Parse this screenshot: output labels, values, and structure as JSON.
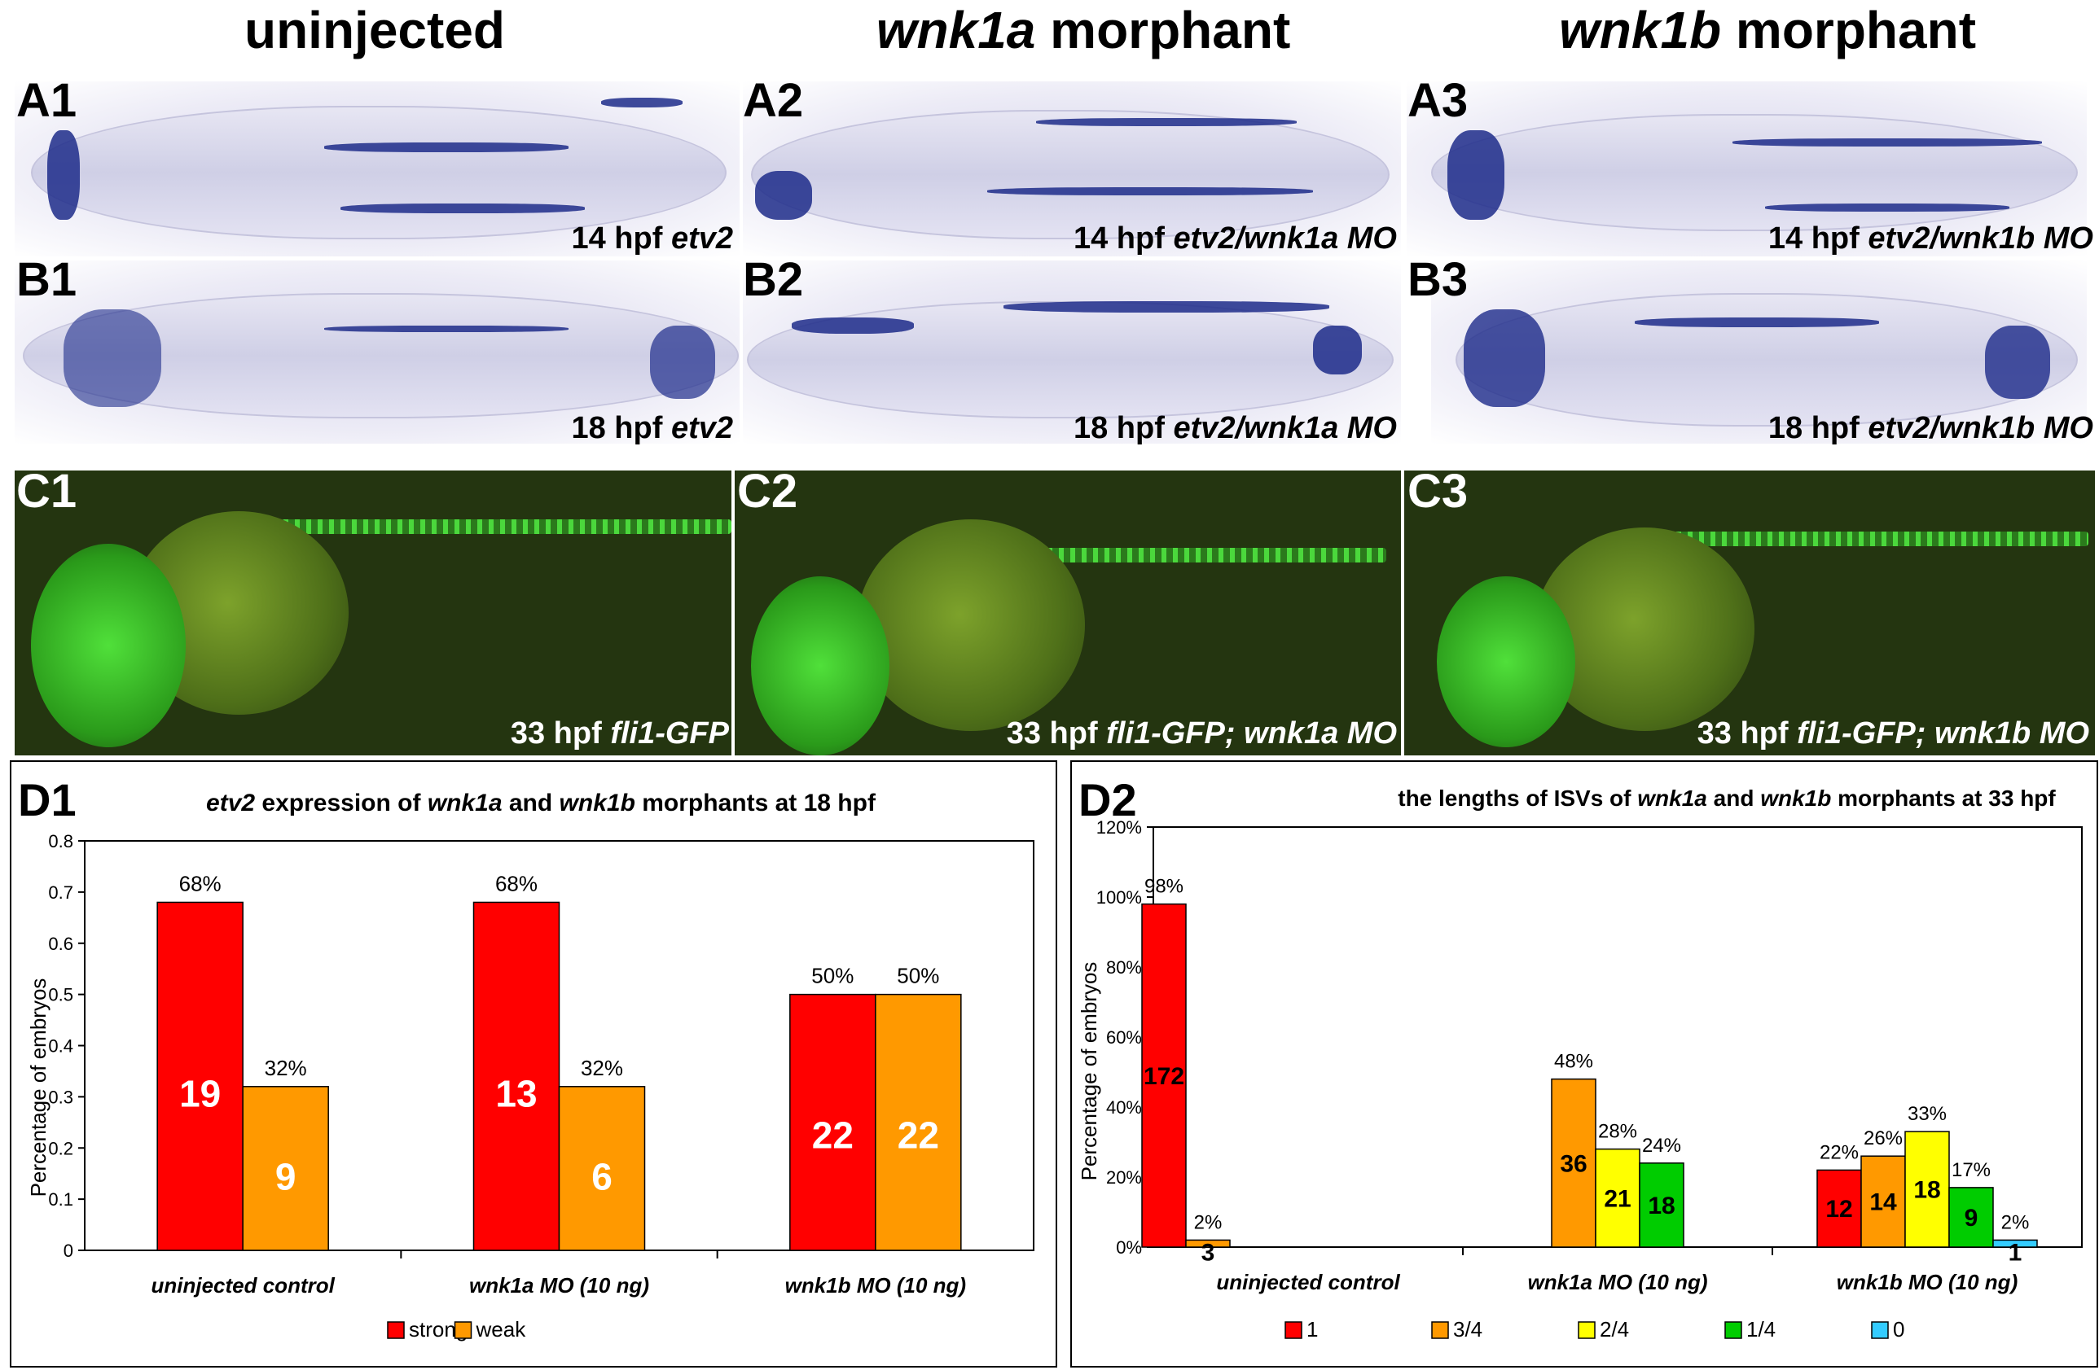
{
  "columns": {
    "uninjected": "uninjected",
    "wnk1a": {
      "gene": "wnk1a",
      "suffix": " morphant"
    },
    "wnk1b": {
      "gene": "wnk1b",
      "suffix": " morphant"
    }
  },
  "panels": {
    "A1": {
      "label": "A1",
      "stage": "14 hpf ",
      "marker": "etv2"
    },
    "A2": {
      "label": "A2",
      "stage": "14 hpf ",
      "marker": "etv2/wnk1a MO"
    },
    "A3": {
      "label": "A3",
      "stage": "14 hpf ",
      "marker": "etv2/wnk1b MO"
    },
    "B1": {
      "label": "B1",
      "stage": "18 hpf ",
      "marker": "etv2"
    },
    "B2": {
      "label": "B2",
      "stage": "18 hpf ",
      "marker": "etv2/wnk1a MO"
    },
    "B3": {
      "label": "B3",
      "stage": "18 hpf ",
      "marker": "etv2/wnk1b MO"
    },
    "C1": {
      "label": "C1",
      "stage": "33 hpf ",
      "marker": "fli1-GFP"
    },
    "C2": {
      "label": "C2",
      "stage": "33 hpf ",
      "marker": "fli1-GFP; wnk1a MO"
    },
    "C3": {
      "label": "C3",
      "stage": "33 hpf ",
      "marker": "fli1-GFP; wnk1b MO"
    }
  },
  "colors": {
    "red": "#ff0000",
    "orange": "#ff9900",
    "yellow": "#ffff00",
    "green": "#00cc00",
    "cyan": "#33ccff"
  },
  "chart_data": [
    {
      "panel": "D1",
      "type": "bar",
      "title_italic": "etv2",
      "title_rest": " expression of ",
      "title_g1": "wnk1a",
      "title_and": " and ",
      "title_g2": "wnk1b",
      "title_tail": " morphants at 18 hpf",
      "ylabel": "Percentage of embryos",
      "ylim": [
        0,
        0.8
      ],
      "yticks": [
        "0",
        "0.1",
        "0.2",
        "0.3",
        "0.4",
        "0.5",
        "0.6",
        "0.7",
        "0.8"
      ],
      "categories": [
        "uninjected control",
        "wnk1a MO (10 ng)",
        "wnk1b MO (10 ng)"
      ],
      "series": [
        {
          "name": "strong",
          "color": "#ff0000",
          "values": [
            0.68,
            0.68,
            0.5
          ],
          "pct_labels": [
            "68%",
            "68%",
            "50%"
          ],
          "counts": [
            "19",
            "13",
            "22"
          ]
        },
        {
          "name": "weak",
          "color": "#ff9900",
          "values": [
            0.32,
            0.32,
            0.5
          ],
          "pct_labels": [
            "32%",
            "32%",
            "50%"
          ],
          "counts": [
            "9",
            "6",
            "22"
          ]
        }
      ]
    },
    {
      "panel": "D2",
      "type": "bar",
      "title_pre": "the lengths of ISVs of ",
      "title_g1": "wnk1a",
      "title_and": " and ",
      "title_g2": "wnk1b",
      "title_tail": " morphants at 33 hpf",
      "ylabel": "Percentage of embryos",
      "ylim": [
        0,
        1.2
      ],
      "yticks": [
        "0%",
        "20%",
        "40%",
        "60%",
        "80%",
        "100%",
        "120%"
      ],
      "categories": [
        "uninjected control",
        "wnk1a MO (10 ng)",
        "wnk1b MO (10 ng)"
      ],
      "series": [
        {
          "name": "1",
          "color": "#ff0000",
          "values": [
            0.98,
            0,
            0.22
          ],
          "pct_labels": [
            "98%",
            "",
            "22%"
          ],
          "counts": [
            "172",
            "",
            "12"
          ]
        },
        {
          "name": "3/4",
          "color": "#ff9900",
          "values": [
            0.02,
            0.48,
            0.26
          ],
          "pct_labels": [
            "2%",
            "48%",
            "26%"
          ],
          "counts": [
            "3",
            "36",
            "14"
          ]
        },
        {
          "name": "2/4",
          "color": "#ffff00",
          "values": [
            0,
            0.28,
            0.33
          ],
          "pct_labels": [
            "",
            "28%",
            "33%"
          ],
          "counts": [
            "",
            "21",
            "18"
          ]
        },
        {
          "name": "1/4",
          "color": "#00cc00",
          "values": [
            0,
            0.24,
            0.17
          ],
          "pct_labels": [
            "",
            "24%",
            "17%"
          ],
          "counts": [
            "",
            "18",
            "9"
          ]
        },
        {
          "name": "0",
          "color": "#33ccff",
          "values": [
            0,
            0,
            0.02
          ],
          "pct_labels": [
            "",
            "",
            "2%"
          ],
          "counts": [
            "",
            "",
            "1"
          ]
        }
      ]
    }
  ]
}
